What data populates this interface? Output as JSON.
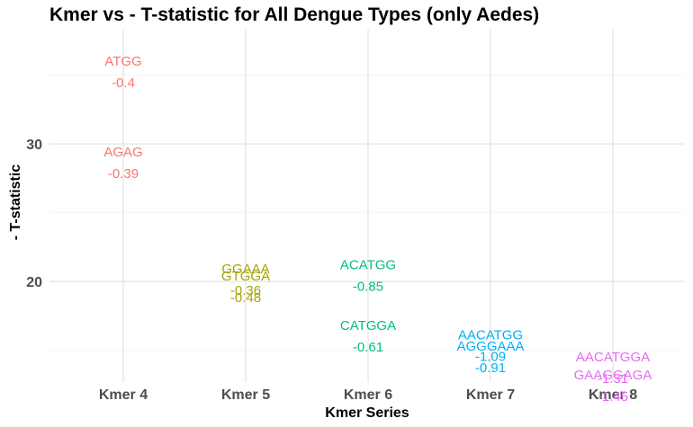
{
  "chart_data": {
    "type": "scatter",
    "title": "Kmer vs - T-statistic for All Dengue Types (only Aedes)",
    "xlabel": "Kmer Series",
    "ylabel": "- T-statistic",
    "categories": [
      "Kmer 4",
      "Kmer 5",
      "Kmer 6",
      "Kmer 7",
      "Kmer 8"
    ],
    "ylim": [
      12.7,
      38.3
    ],
    "yticks": [
      20,
      30
    ],
    "grid": true,
    "legend": "none",
    "series": [
      {
        "category": "Kmer 4",
        "color": "#F8766D",
        "points": [
          {
            "label": "ATGG",
            "value_label": "-0.4",
            "y": 35.3
          },
          {
            "label": "AGAG",
            "value_label": "-0.39",
            "y": 28.7
          }
        ]
      },
      {
        "category": "Kmer 5",
        "color": "#A3A500",
        "points": [
          {
            "label": "GGAAA",
            "value_label": "-0.36",
            "y": 20.2
          },
          {
            "label": "GTGGA",
            "value_label": "-0.48",
            "y": 19.7
          }
        ]
      },
      {
        "category": "Kmer 6",
        "color": "#00BF7D",
        "points": [
          {
            "label": "ACATGG",
            "value_label": "-0.85",
            "y": 20.5
          },
          {
            "label": "CATGGA",
            "value_label": "-0.61",
            "y": 16.1
          }
        ]
      },
      {
        "category": "Kmer 7",
        "color": "#00B0F6",
        "points": [
          {
            "label": "AACATGG",
            "value_label": "-1.09",
            "y": 15.4
          },
          {
            "label": "AGGGAAA",
            "value_label": "-0.91",
            "y": 14.6
          }
        ]
      },
      {
        "category": "Kmer 8",
        "color": "#E76BF3",
        "points": [
          {
            "label": "AACATGGA",
            "value_label": "-1.31",
            "y": 13.8
          },
          {
            "label": "GAAGGAGA",
            "value_label": "-1.45",
            "y": 12.5
          }
        ]
      }
    ]
  }
}
